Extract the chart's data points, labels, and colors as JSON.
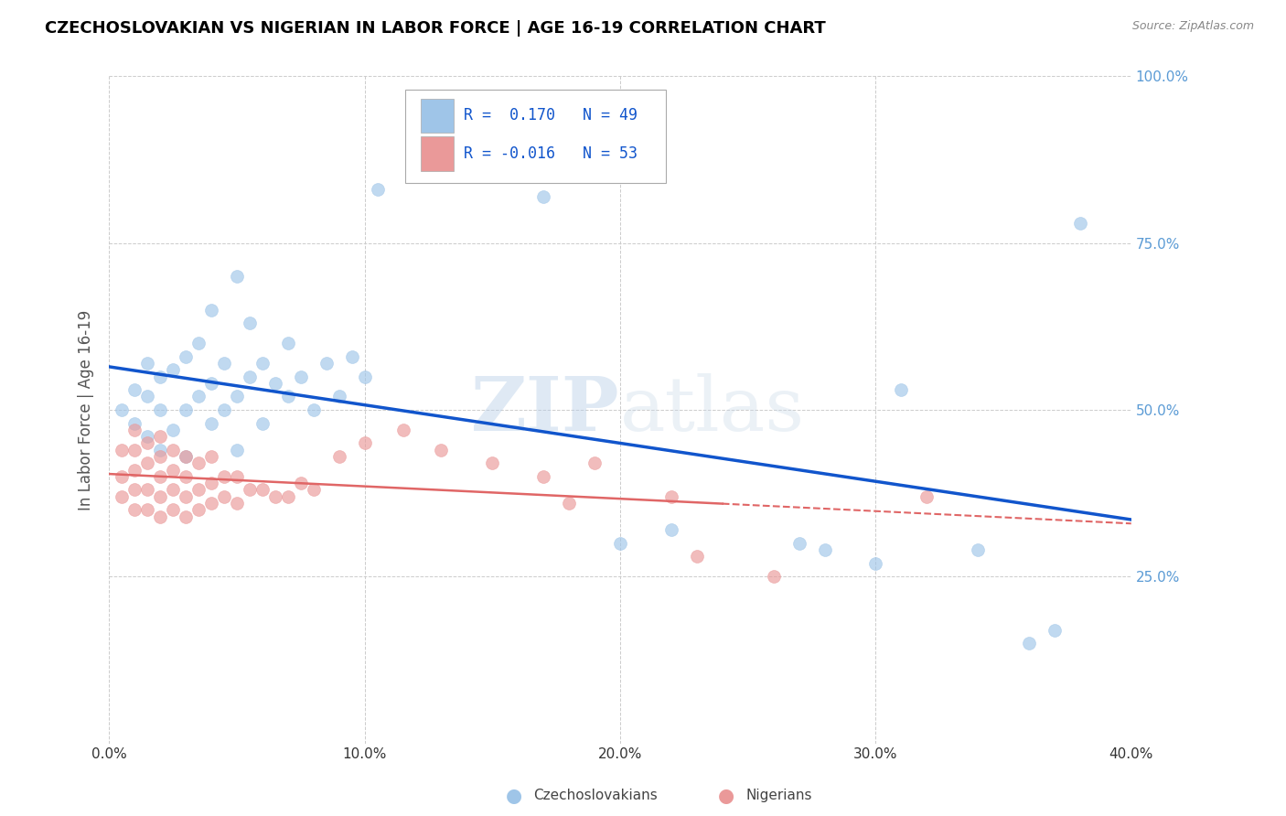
{
  "title": "CZECHOSLOVAKIAN VS NIGERIAN IN LABOR FORCE | AGE 16-19 CORRELATION CHART",
  "source_text": "Source: ZipAtlas.com",
  "ylabel": "In Labor Force | Age 16-19",
  "legend_blue_label": "Czechoslovakians",
  "legend_pink_label": "Nigerians",
  "xlim": [
    0.0,
    0.4
  ],
  "ylim": [
    0.0,
    1.0
  ],
  "xticks": [
    0.0,
    0.1,
    0.2,
    0.3,
    0.4
  ],
  "xtick_labels": [
    "0.0%",
    "10.0%",
    "20.0%",
    "30.0%",
    "40.0%"
  ],
  "yticks": [
    0.0,
    0.25,
    0.5,
    0.75,
    1.0
  ],
  "ytick_labels_right": [
    "",
    "25.0%",
    "50.0%",
    "75.0%",
    "100.0%"
  ],
  "blue_color": "#9fc5e8",
  "pink_color": "#ea9999",
  "blue_line_color": "#1155cc",
  "pink_line_color": "#e06666",
  "R_blue": 0.17,
  "N_blue": 49,
  "R_pink": -0.016,
  "N_pink": 53,
  "blue_scatter_x": [
    0.005,
    0.01,
    0.01,
    0.015,
    0.015,
    0.015,
    0.02,
    0.02,
    0.02,
    0.025,
    0.025,
    0.03,
    0.03,
    0.03,
    0.035,
    0.035,
    0.04,
    0.04,
    0.04,
    0.045,
    0.045,
    0.05,
    0.05,
    0.05,
    0.055,
    0.055,
    0.06,
    0.06,
    0.065,
    0.07,
    0.07,
    0.075,
    0.08,
    0.085,
    0.09,
    0.095,
    0.1,
    0.105,
    0.17,
    0.2,
    0.22,
    0.27,
    0.28,
    0.3,
    0.31,
    0.34,
    0.36,
    0.37,
    0.38
  ],
  "blue_scatter_y": [
    0.5,
    0.48,
    0.53,
    0.46,
    0.52,
    0.57,
    0.44,
    0.5,
    0.55,
    0.47,
    0.56,
    0.43,
    0.5,
    0.58,
    0.52,
    0.6,
    0.48,
    0.54,
    0.65,
    0.5,
    0.57,
    0.44,
    0.52,
    0.7,
    0.55,
    0.63,
    0.48,
    0.57,
    0.54,
    0.52,
    0.6,
    0.55,
    0.5,
    0.57,
    0.52,
    0.58,
    0.55,
    0.83,
    0.82,
    0.3,
    0.32,
    0.3,
    0.29,
    0.27,
    0.53,
    0.29,
    0.15,
    0.17,
    0.78
  ],
  "pink_scatter_x": [
    0.005,
    0.005,
    0.005,
    0.01,
    0.01,
    0.01,
    0.01,
    0.01,
    0.015,
    0.015,
    0.015,
    0.015,
    0.02,
    0.02,
    0.02,
    0.02,
    0.02,
    0.025,
    0.025,
    0.025,
    0.025,
    0.03,
    0.03,
    0.03,
    0.03,
    0.035,
    0.035,
    0.035,
    0.04,
    0.04,
    0.04,
    0.045,
    0.045,
    0.05,
    0.05,
    0.055,
    0.06,
    0.065,
    0.07,
    0.075,
    0.08,
    0.09,
    0.1,
    0.115,
    0.13,
    0.15,
    0.17,
    0.18,
    0.19,
    0.22,
    0.23,
    0.26,
    0.32
  ],
  "pink_scatter_y": [
    0.37,
    0.4,
    0.44,
    0.35,
    0.38,
    0.41,
    0.44,
    0.47,
    0.35,
    0.38,
    0.42,
    0.45,
    0.34,
    0.37,
    0.4,
    0.43,
    0.46,
    0.35,
    0.38,
    0.41,
    0.44,
    0.34,
    0.37,
    0.4,
    0.43,
    0.35,
    0.38,
    0.42,
    0.36,
    0.39,
    0.43,
    0.37,
    0.4,
    0.36,
    0.4,
    0.38,
    0.38,
    0.37,
    0.37,
    0.39,
    0.38,
    0.43,
    0.45,
    0.47,
    0.44,
    0.42,
    0.4,
    0.36,
    0.42,
    0.37,
    0.28,
    0.25,
    0.37
  ],
  "watermark_zip": "ZIP",
  "watermark_atlas": "atlas",
  "background_color": "#ffffff",
  "grid_color": "#cccccc",
  "title_color": "#000000",
  "axis_label_color": "#555555"
}
